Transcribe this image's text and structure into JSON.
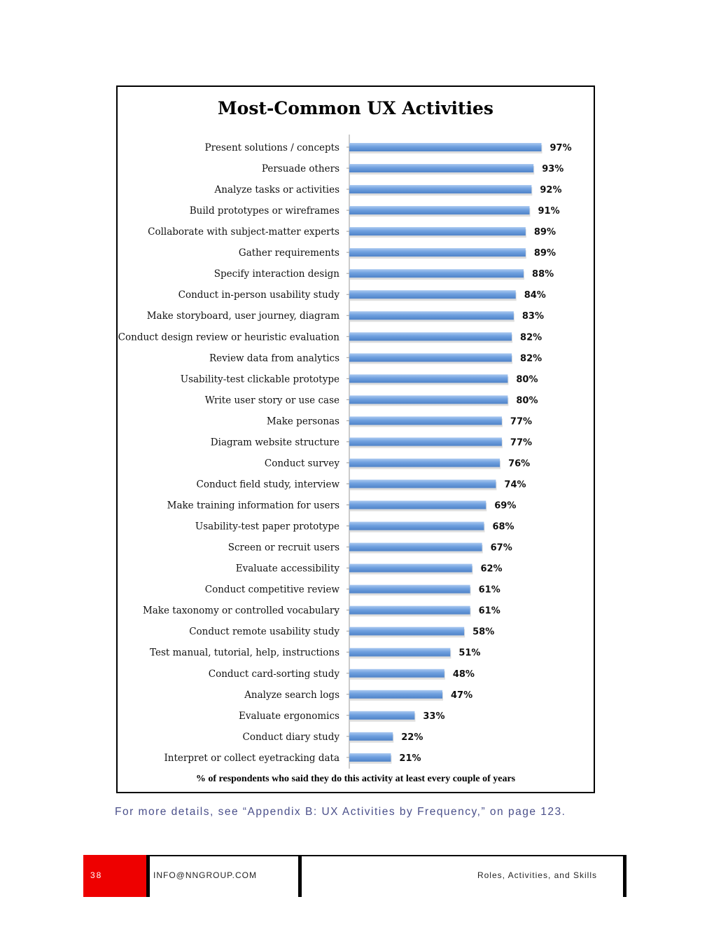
{
  "chart_data": {
    "type": "bar",
    "orientation": "horizontal",
    "title": "Most-Common UX Activities",
    "xlabel": "% of respondents who said they do this activity at least every couple of years",
    "ylabel": "",
    "xlim": [
      0,
      100
    ],
    "value_suffix": "%",
    "grid": false,
    "legend": false,
    "bar_color": "#6fa0df",
    "categories": [
      "Present solutions / concepts",
      "Persuade others",
      "Analyze tasks or activities",
      "Build prototypes or wireframes",
      "Collaborate with subject-matter experts",
      "Gather requirements",
      "Specify interaction design",
      "Conduct in-person usability study",
      "Make storyboard, user journey, diagram",
      "Conduct design review or heuristic evaluation",
      "Review data from analytics",
      "Usability-test clickable prototype",
      "Write user story or use case",
      "Make personas",
      "Diagram website structure",
      "Conduct survey",
      "Conduct field study, interview",
      "Make training information for users",
      "Usability-test paper prototype",
      "Screen or recruit users",
      "Evaluate accessibility",
      "Conduct competitive review",
      "Make taxonomy or controlled vocabulary",
      "Conduct remote usability study",
      "Test manual, tutorial, help, instructions",
      "Conduct card-sorting study",
      "Analyze search logs",
      "Evaluate ergonomics",
      "Conduct diary study",
      "Interpret or collect eyetracking data"
    ],
    "values": [
      97,
      93,
      92,
      91,
      89,
      89,
      88,
      84,
      83,
      82,
      82,
      80,
      80,
      77,
      77,
      76,
      74,
      69,
      68,
      67,
      62,
      61,
      61,
      58,
      51,
      48,
      47,
      33,
      22,
      21
    ]
  },
  "caption": "For more details, see “Appendix B: UX Activities by Frequency,” on page 123.",
  "footer": {
    "page_number": "38",
    "email": "INFO@NNGROUP.COM",
    "section": "Roles, Activities, and Skills",
    "accent_color": "#ee0000"
  }
}
